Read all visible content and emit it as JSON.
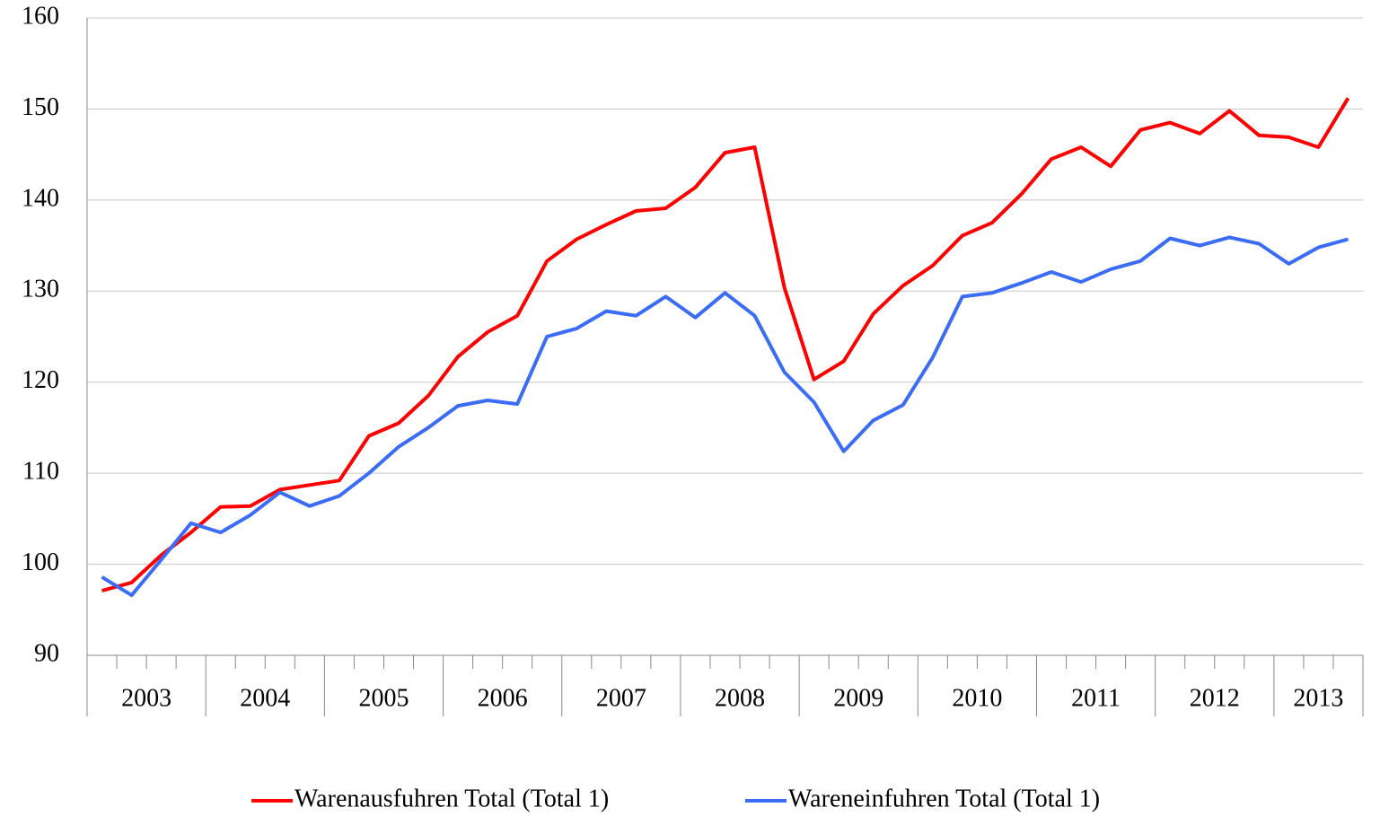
{
  "chart_data": {
    "type": "line",
    "categories": [
      null,
      null,
      null,
      null,
      null,
      null,
      null,
      null,
      null,
      null,
      null,
      null,
      null,
      null,
      null,
      null,
      null,
      null,
      null,
      null,
      null,
      null,
      null,
      null,
      null,
      null,
      null,
      null,
      null,
      null,
      null,
      null,
      null,
      null,
      null,
      null,
      null,
      null,
      null,
      null,
      null,
      null,
      null
    ],
    "x_groups": [
      {
        "label": "2003",
        "size": 4
      },
      {
        "label": "2004",
        "size": 4
      },
      {
        "label": "2005",
        "size": 4
      },
      {
        "label": "2006",
        "size": 4
      },
      {
        "label": "2007",
        "size": 4
      },
      {
        "label": "2008",
        "size": 4
      },
      {
        "label": "2009",
        "size": 4
      },
      {
        "label": "2010",
        "size": 4
      },
      {
        "label": "2011",
        "size": 4
      },
      {
        "label": "2012",
        "size": 4
      },
      {
        "label": "2013",
        "size": 3
      }
    ],
    "series": [
      {
        "name": "Warenausfuhren Total (Total 1)",
        "color": "#ff0000",
        "values": [
          97.1,
          98.0,
          101.0,
          103.5,
          106.3,
          106.4,
          108.2,
          108.7,
          109.2,
          114.1,
          115.5,
          118.5,
          122.8,
          125.5,
          127.3,
          133.3,
          135.7,
          137.3,
          138.8,
          139.1,
          141.4,
          145.2,
          145.8,
          130.4,
          120.3,
          122.3,
          127.5,
          130.6,
          132.8,
          136.1,
          137.5,
          140.7,
          144.5,
          145.8,
          143.7,
          147.7,
          148.5,
          147.3,
          149.8,
          147.1,
          146.9,
          145.8,
          151.2
        ]
      },
      {
        "name": "Wareneinfuhren Total (Total 1)",
        "color": "#3b6cf5",
        "values": [
          98.6,
          96.6,
          100.5,
          104.5,
          103.5,
          105.4,
          107.9,
          106.4,
          107.5,
          110.0,
          112.9,
          115.0,
          117.4,
          118.0,
          117.6,
          125.0,
          125.9,
          127.8,
          127.3,
          129.4,
          127.1,
          129.8,
          127.3,
          121.1,
          117.8,
          112.4,
          115.8,
          117.5,
          122.7,
          129.4,
          129.8,
          130.9,
          132.1,
          131.0,
          132.4,
          133.3,
          135.8,
          135.0,
          135.9,
          135.2,
          133.0,
          134.8,
          135.7
        ]
      }
    ],
    "ylim": [
      90,
      160
    ],
    "yticks": [
      90,
      100,
      110,
      120,
      130,
      140,
      150,
      160
    ],
    "grid": true,
    "legend": "bottom"
  }
}
